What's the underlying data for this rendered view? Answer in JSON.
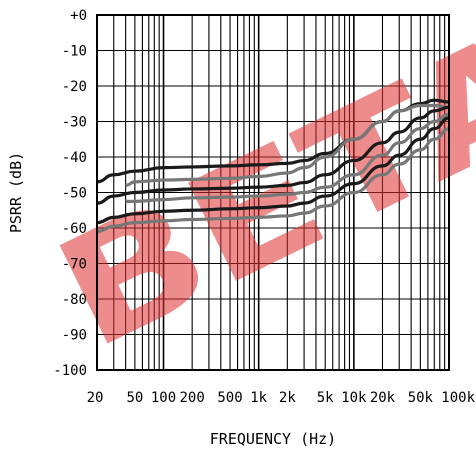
{
  "chart_data": {
    "type": "line",
    "title": "",
    "xlabel": "FREQUENCY (Hz)",
    "ylabel": "PSRR (dB)",
    "x_scale": "log",
    "xlim": [
      20,
      100000
    ],
    "ylim": [
      -100,
      0
    ],
    "grid": true,
    "x_ticks": [
      20,
      50,
      100,
      200,
      500,
      1000,
      2000,
      5000,
      10000,
      20000,
      50000,
      100000
    ],
    "x_tick_labels": [
      "20",
      "50",
      "100",
      "200",
      "500",
      "1k",
      "2k",
      "5k",
      "10k",
      "20k",
      "50k",
      "100k"
    ],
    "y_ticks": [
      0,
      -10,
      -20,
      -30,
      -40,
      -50,
      -60,
      -70,
      -80,
      -90,
      -100
    ],
    "y_tick_labels": [
      "+0",
      "-10",
      "-20",
      "-30",
      "-40",
      "-50",
      "-60",
      "-70",
      "-80",
      "-90",
      "-100"
    ],
    "watermark_text": "BETA",
    "watermark_color": "#e03030",
    "series": [
      {
        "color": "#1a1a1a",
        "x": [
          20,
          30,
          50,
          100,
          200,
          500,
          1000,
          2000,
          3000,
          5000,
          10000,
          20000,
          30000,
          50000,
          70000,
          100000
        ],
        "y": [
          -47,
          -45,
          -44,
          -43,
          -42.8,
          -42.5,
          -42.2,
          -41.8,
          -41,
          -39,
          -35,
          -30,
          -27,
          -25,
          -24,
          -24.5
        ]
      },
      {
        "color": "#777777",
        "x": [
          40,
          50,
          100,
          200,
          500,
          1000,
          2000,
          3000,
          5000,
          10000,
          20000,
          30000,
          50000,
          70000,
          100000
        ],
        "y": [
          -48,
          -47,
          -46.5,
          -46.3,
          -46,
          -45.5,
          -44.5,
          -43,
          -40,
          -35,
          -30,
          -27,
          -25.5,
          -25.5,
          -26
        ]
      },
      {
        "color": "#1a1a1a",
        "x": [
          20,
          30,
          50,
          100,
          200,
          500,
          1000,
          2000,
          3000,
          5000,
          10000,
          20000,
          30000,
          50000,
          70000,
          100000
        ],
        "y": [
          -53,
          -51,
          -50,
          -49.3,
          -49,
          -48.8,
          -48.5,
          -48,
          -47.2,
          -45,
          -41,
          -36,
          -33,
          -29,
          -27,
          -26
        ]
      },
      {
        "color": "#777777",
        "x": [
          40,
          50,
          100,
          200,
          500,
          1000,
          2000,
          3000,
          5000,
          10000,
          20000,
          30000,
          50000,
          70000,
          100000
        ],
        "y": [
          -52.5,
          -52.5,
          -52,
          -51.5,
          -51.3,
          -51,
          -50.5,
          -50,
          -48.5,
          -45,
          -39.5,
          -36,
          -32,
          -30,
          -28
        ]
      },
      {
        "color": "#1a1a1a",
        "x": [
          20,
          30,
          50,
          100,
          200,
          500,
          1000,
          2000,
          3000,
          5000,
          10000,
          20000,
          30000,
          50000,
          70000,
          100000
        ],
        "y": [
          -58.5,
          -57,
          -56,
          -55.3,
          -55,
          -54.6,
          -54.3,
          -53.8,
          -53,
          -51,
          -47.5,
          -42.5,
          -39.5,
          -35,
          -32,
          -29
        ]
      },
      {
        "color": "#777777",
        "x": [
          20,
          30,
          50,
          100,
          200,
          500,
          1000,
          2000,
          3000,
          5000,
          10000,
          20000,
          30000,
          50000,
          70000,
          100000
        ],
        "y": [
          -61,
          -59.5,
          -58.5,
          -58,
          -57.6,
          -57.3,
          -57,
          -56.6,
          -55.8,
          -53.8,
          -50,
          -45,
          -42,
          -38,
          -35,
          -32
        ]
      }
    ]
  }
}
